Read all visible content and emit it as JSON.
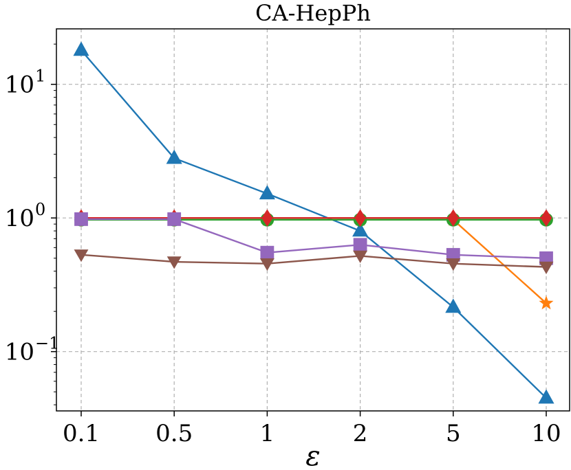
{
  "chart_data": {
    "type": "line",
    "title": "CA-HepPh",
    "xlabel": "ε",
    "ylabel": "",
    "yscale": "log",
    "ylim": [
      0.036,
      26
    ],
    "categories": [
      "0.1",
      "0.5",
      "1",
      "2",
      "5",
      "10"
    ],
    "y_ticks": [
      {
        "base": "10",
        "exp": "−1",
        "value": 0.1
      },
      {
        "base": "10",
        "exp": "0",
        "value": 1
      },
      {
        "base": "10",
        "exp": "1",
        "value": 10
      }
    ],
    "grid": true,
    "legend": "none",
    "series": [
      {
        "name": "blue-triangle-up",
        "color": "#1f77b4",
        "marker": "triangle-up",
        "values": [
          18,
          2.8,
          1.52,
          0.8,
          0.215,
          0.045
        ]
      },
      {
        "name": "orange-star",
        "color": "#ff7f0e",
        "marker": "star",
        "values": [
          0.97,
          0.97,
          0.97,
          0.97,
          0.97,
          0.23
        ]
      },
      {
        "name": "green-circle",
        "color": "#2ca02c",
        "marker": "circle",
        "values": [
          0.97,
          0.97,
          0.97,
          0.97,
          0.97,
          0.97
        ]
      },
      {
        "name": "red-diamond",
        "color": "#d62728",
        "marker": "diamond",
        "values": [
          1.0,
          1.0,
          1.0,
          1.0,
          1.0,
          1.0
        ]
      },
      {
        "name": "purple-square",
        "color": "#9467bd",
        "marker": "square",
        "values": [
          0.98,
          0.98,
          0.55,
          0.63,
          0.53,
          0.5
        ]
      },
      {
        "name": "brown-triangle-down",
        "color": "#8c564b",
        "marker": "triangle-down",
        "values": [
          0.53,
          0.47,
          0.455,
          0.52,
          0.455,
          0.43
        ]
      }
    ]
  }
}
